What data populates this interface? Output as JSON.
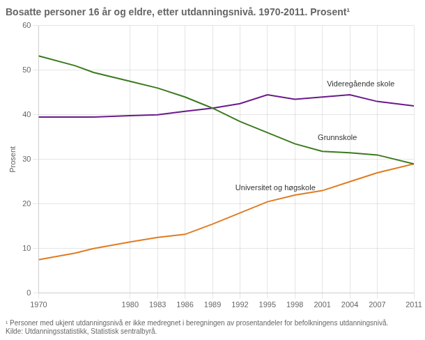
{
  "chart_data": {
    "type": "line",
    "title": "Bosatte personer 16 år og eldre, etter utdanningsnivå. 1970-2011. Prosent¹",
    "y_label": "Prosent",
    "footnotes": [
      "¹ Personer med ukjent utdanningsnivå er ikke medregnet i beregningen av prosentandeler for befolkningens utdanningsnivå.",
      "Kilde: Utdanningsstatistikk, Statistisk sentralbyrå."
    ],
    "x": [
      1970,
      1974,
      1976,
      1980,
      1983,
      1986,
      1989,
      1992,
      1995,
      1998,
      2001,
      2004,
      2007,
      2011
    ],
    "series": [
      {
        "name": "Grunnskole",
        "color": "#3a7a1e",
        "values": [
          53.2,
          51.0,
          49.5,
          47.5,
          46.0,
          44.0,
          41.5,
          38.5,
          36.0,
          33.5,
          31.8,
          31.5,
          31.0,
          29.0
        ]
      },
      {
        "name": "Videregående skole",
        "color": "#6a1a8a",
        "values": [
          39.5,
          39.5,
          39.5,
          39.8,
          40.0,
          40.8,
          41.5,
          42.5,
          44.5,
          43.5,
          44.0,
          44.5,
          43.0,
          42.0
        ]
      },
      {
        "name": "Universitet og høgskole",
        "color": "#e07b20",
        "values": [
          7.5,
          9.0,
          10.0,
          11.5,
          12.5,
          13.2,
          15.5,
          18.0,
          20.5,
          22.0,
          23.0,
          25.0,
          27.0,
          29.0
        ]
      }
    ],
    "xlim": [
      1970,
      2011
    ],
    "xticks": [
      1970,
      1980,
      1983,
      1986,
      1989,
      1992,
      1995,
      1998,
      2001,
      2004,
      2007,
      2011
    ],
    "ylim": [
      0,
      60
    ],
    "yticks": [
      0,
      10,
      20,
      30,
      40,
      50,
      60
    ],
    "grid": true,
    "annotations": [
      {
        "text": "Videregående skole",
        "x": 2001.5,
        "y": 46.8
      },
      {
        "text": "Grunnskole",
        "x": 2000.5,
        "y": 34.8
      },
      {
        "text": "Universitet og høgskole",
        "x": 1991.5,
        "y": 23.5
      }
    ]
  }
}
